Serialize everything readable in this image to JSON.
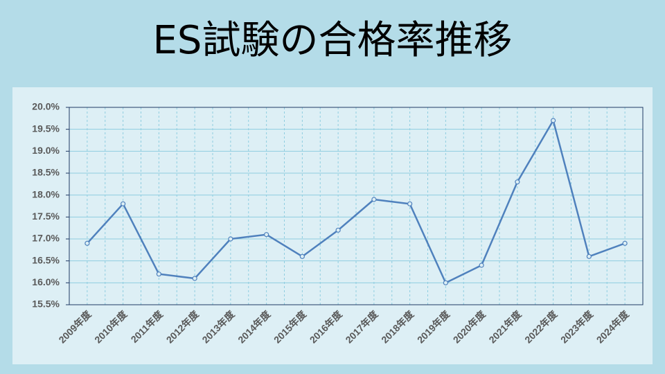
{
  "chart_data": {
    "type": "line",
    "title": "ES試験の合格率推移",
    "categories": [
      "2009年度",
      "2010年度",
      "2011年度",
      "2012年度",
      "2013年度",
      "2014年度",
      "2015年度",
      "2016年度",
      "2017年度",
      "2018年度",
      "2019年度",
      "2020年度",
      "2021年度",
      "2022年度",
      "2023年度",
      "2024年度"
    ],
    "values": [
      16.9,
      17.8,
      16.2,
      16.1,
      17.0,
      17.1,
      16.6,
      17.2,
      17.9,
      17.8,
      16.0,
      16.4,
      18.3,
      19.7,
      16.6,
      16.9
    ],
    "color": "#4f81bd",
    "ylim": [
      15.5,
      20
    ],
    "yticks": [
      {
        "value": 15.5,
        "label": "15.5%"
      },
      {
        "value": 16,
        "label": "16.0%"
      },
      {
        "value": 16.5,
        "label": "16.5%"
      },
      {
        "value": 17,
        "label": "17.0%"
      },
      {
        "value": 17.5,
        "label": "17.5%"
      },
      {
        "value": 18,
        "label": "18.0%"
      },
      {
        "value": 18.5,
        "label": "18.5%"
      },
      {
        "value": 19,
        "label": "19.0%"
      },
      {
        "value": 19.5,
        "label": "19.5%"
      },
      {
        "value": 20,
        "label": "20.0%"
      }
    ],
    "grid": true
  }
}
